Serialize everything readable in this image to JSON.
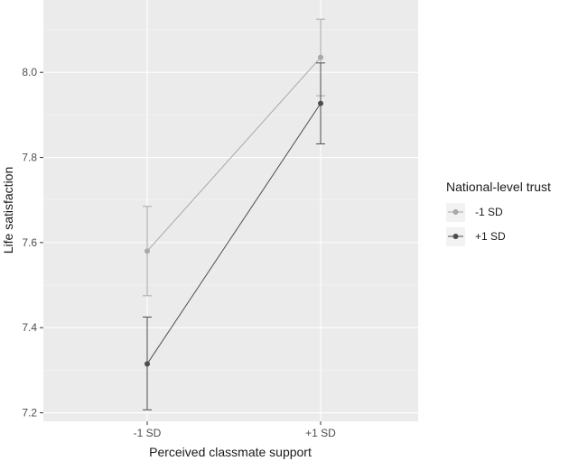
{
  "chart_data": {
    "type": "line",
    "xlabel": "Perceived classmate support",
    "ylabel": "Life satisfaction",
    "categories": [
      "-1 SD",
      "+1 SD"
    ],
    "ylim": [
      7.18,
      8.17
    ],
    "yticks": [
      "7.2",
      "7.4",
      "7.6",
      "7.8",
      "8.0"
    ],
    "grid": true,
    "legend": {
      "title": "National-level trust",
      "placement": "right"
    },
    "series": [
      {
        "name": "-1 SD",
        "color": "#a8a8a8",
        "values": [
          7.58,
          8.035
        ],
        "lower": [
          7.475,
          7.945
        ],
        "upper": [
          7.685,
          8.125
        ]
      },
      {
        "name": "+1 SD",
        "color": "#4d4d4d",
        "values": [
          7.315,
          7.927
        ],
        "lower": [
          7.207,
          7.832
        ],
        "upper": [
          7.425,
          8.022
        ]
      }
    ]
  }
}
